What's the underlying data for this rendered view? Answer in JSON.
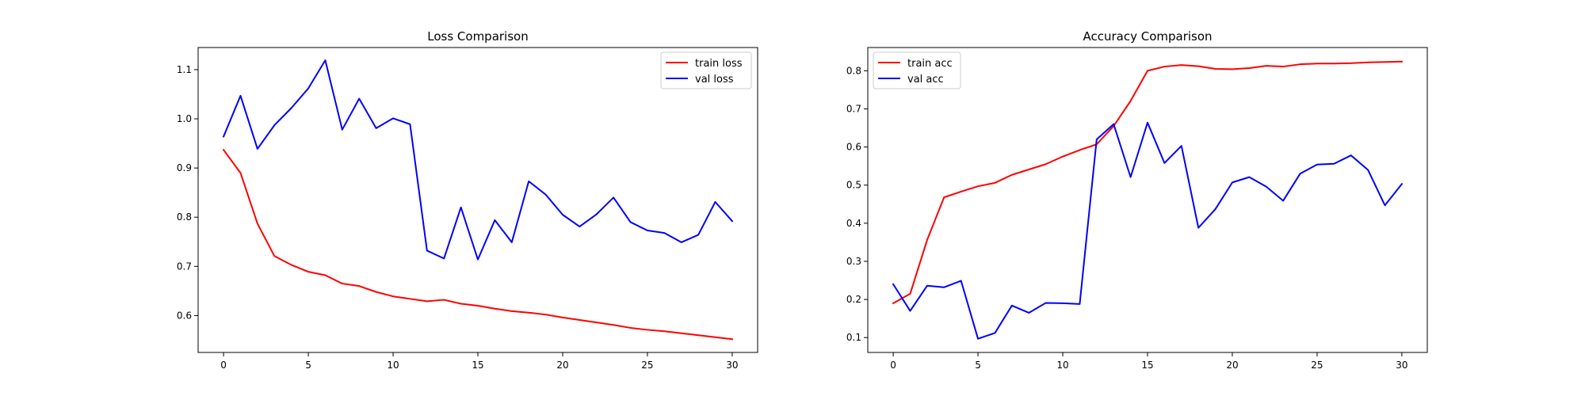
{
  "chart_data": [
    {
      "type": "line",
      "title": "Loss Comparison",
      "xlabel": "",
      "ylabel": "",
      "xlim": [
        -1.5,
        31.5
      ],
      "ylim": [
        0.525,
        1.145
      ],
      "xticks": [
        0,
        5,
        10,
        15,
        20,
        25,
        30
      ],
      "yticks": [
        0.6,
        0.7,
        0.8,
        0.9,
        1.0,
        1.1
      ],
      "ytick_labels": [
        "0.6",
        "0.7",
        "0.8",
        "0.9",
        "1.0",
        "1.1"
      ],
      "grid": false,
      "legend": "top-right",
      "x": [
        0,
        1,
        2,
        3,
        4,
        5,
        6,
        7,
        8,
        9,
        10,
        11,
        12,
        13,
        14,
        15,
        16,
        17,
        18,
        19,
        20,
        21,
        22,
        23,
        24,
        25,
        26,
        27,
        28,
        29,
        30
      ],
      "series": [
        {
          "name": "train loss",
          "color": "#ff0000",
          "values": [
            0.937,
            0.89,
            0.787,
            0.721,
            0.703,
            0.689,
            0.682,
            0.665,
            0.66,
            0.648,
            0.639,
            0.634,
            0.629,
            0.632,
            0.624,
            0.62,
            0.614,
            0.609,
            0.606,
            0.602,
            0.596,
            0.591,
            0.586,
            0.581,
            0.575,
            0.571,
            0.568,
            0.564,
            0.56,
            0.556,
            0.552
          ]
        },
        {
          "name": "val loss",
          "color": "#0000ff",
          "values": [
            0.964,
            1.047,
            0.939,
            0.987,
            1.022,
            1.062,
            1.119,
            0.978,
            1.041,
            0.981,
            1.001,
            0.989,
            0.732,
            0.716,
            0.82,
            0.714,
            0.794,
            0.749,
            0.873,
            0.846,
            0.805,
            0.781,
            0.806,
            0.84,
            0.79,
            0.773,
            0.768,
            0.749,
            0.764,
            0.831,
            0.792
          ]
        }
      ]
    },
    {
      "type": "line",
      "title": "Accuracy Comparison",
      "xlabel": "",
      "ylabel": "",
      "xlim": [
        -1.5,
        31.5
      ],
      "ylim": [
        0.061,
        0.861
      ],
      "xticks": [
        0,
        5,
        10,
        15,
        20,
        25,
        30
      ],
      "yticks": [
        0.1,
        0.2,
        0.3,
        0.4,
        0.5,
        0.6,
        0.7,
        0.8
      ],
      "ytick_labels": [
        "0.1",
        "0.2",
        "0.3",
        "0.4",
        "0.5",
        "0.6",
        "0.7",
        "0.8"
      ],
      "grid": false,
      "legend": "top-left",
      "x": [
        0,
        1,
        2,
        3,
        4,
        5,
        6,
        7,
        8,
        9,
        10,
        11,
        12,
        13,
        14,
        15,
        16,
        17,
        18,
        19,
        20,
        21,
        22,
        23,
        24,
        25,
        26,
        27,
        28,
        29,
        30
      ],
      "series": [
        {
          "name": "train acc",
          "color": "#ff0000",
          "values": [
            0.19,
            0.215,
            0.356,
            0.468,
            0.483,
            0.497,
            0.506,
            0.527,
            0.541,
            0.555,
            0.575,
            0.592,
            0.607,
            0.655,
            0.721,
            0.8,
            0.811,
            0.815,
            0.812,
            0.805,
            0.804,
            0.807,
            0.813,
            0.811,
            0.817,
            0.819,
            0.819,
            0.82,
            0.822,
            0.823,
            0.824
          ]
        },
        {
          "name": "val acc",
          "color": "#0000ff",
          "values": [
            0.24,
            0.17,
            0.236,
            0.232,
            0.249,
            0.097,
            0.112,
            0.184,
            0.165,
            0.191,
            0.19,
            0.188,
            0.62,
            0.66,
            0.521,
            0.664,
            0.558,
            0.603,
            0.388,
            0.437,
            0.507,
            0.521,
            0.496,
            0.459,
            0.53,
            0.554,
            0.556,
            0.578,
            0.54,
            0.447,
            0.503
          ]
        }
      ]
    }
  ]
}
